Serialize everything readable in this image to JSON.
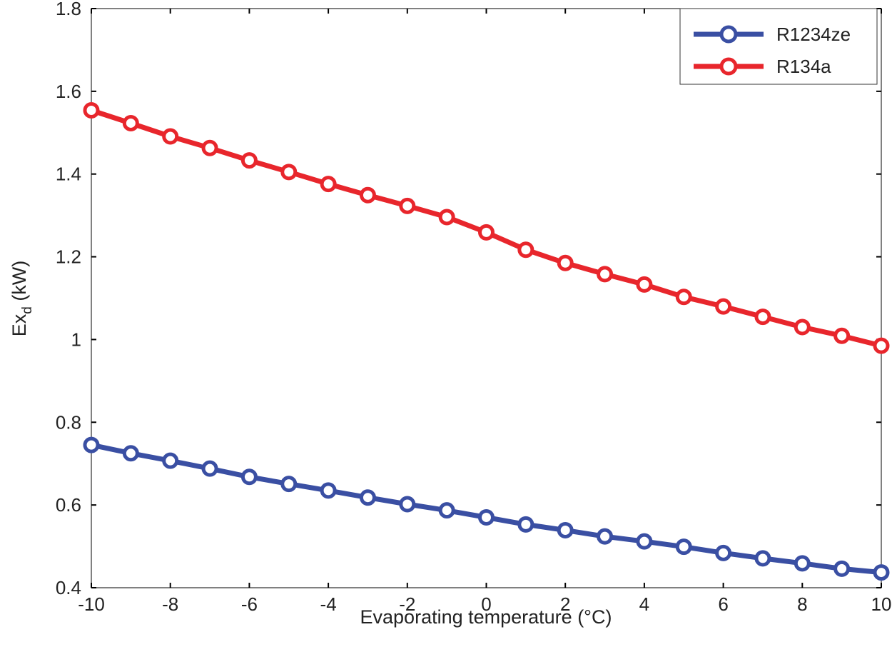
{
  "chart_data": {
    "type": "line",
    "title": "",
    "xlabel": "Evaporating temperature (°C)",
    "ylabel_main": "Ex",
    "ylabel_sub": "d",
    "ylabel_unit": " (kW)",
    "xlim": [
      -10,
      10
    ],
    "ylim": [
      0.4,
      1.8
    ],
    "xticks": [
      -10,
      -8,
      -6,
      -4,
      -2,
      0,
      2,
      4,
      6,
      8,
      10
    ],
    "xtick_labels": [
      "-10",
      "-8",
      "-6",
      "-4",
      "-2",
      "0",
      "2",
      "4",
      "6",
      "8",
      "10"
    ],
    "yticks": [
      0.4,
      0.6,
      0.8,
      1.0,
      1.2,
      1.4,
      1.6,
      1.8
    ],
    "ytick_labels": [
      "0.4",
      "0.6",
      "0.8",
      "1",
      "1.2",
      "1.4",
      "1.6",
      "1.8"
    ],
    "grid": false,
    "legend_position": "top-right",
    "x": [
      -10,
      -9,
      -8,
      -7,
      -6,
      -5,
      -4,
      -3,
      -2,
      -1,
      0,
      1,
      2,
      3,
      4,
      5,
      6,
      7,
      8,
      9,
      10
    ],
    "series": [
      {
        "name": "R1234ze",
        "color": "#3a4fa3",
        "values": [
          0.745,
          0.725,
          0.707,
          0.688,
          0.668,
          0.651,
          0.635,
          0.618,
          0.602,
          0.587,
          0.57,
          0.553,
          0.539,
          0.524,
          0.512,
          0.499,
          0.484,
          0.471,
          0.459,
          0.446,
          0.437
        ]
      },
      {
        "name": "R134a",
        "color": "#e8262c",
        "values": [
          1.554,
          1.523,
          1.491,
          1.463,
          1.433,
          1.405,
          1.376,
          1.349,
          1.323,
          1.296,
          1.259,
          1.217,
          1.185,
          1.158,
          1.133,
          1.103,
          1.08,
          1.055,
          1.03,
          1.009,
          0.985
        ]
      }
    ]
  }
}
